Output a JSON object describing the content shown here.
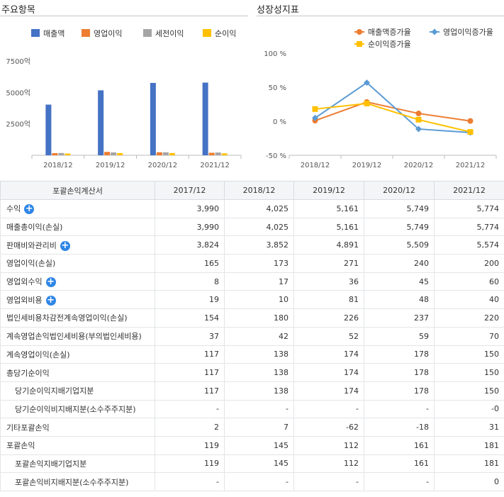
{
  "left_panel": {
    "title": "주요항목"
  },
  "right_panel": {
    "title": "성장성지표"
  },
  "chart_data": [
    {
      "type": "bar",
      "categories": [
        "2018/12",
        "2019/12",
        "2020/12",
        "2021/12"
      ],
      "series": [
        {
          "name": "매출액",
          "color": "#4472c4",
          "values": [
            4025,
            5161,
            5749,
            5774
          ]
        },
        {
          "name": "영업이익",
          "color": "#ed7d31",
          "values": [
            173,
            271,
            240,
            200
          ]
        },
        {
          "name": "세전이익",
          "color": "#a5a5a5",
          "values": [
            180,
            226,
            237,
            220
          ]
        },
        {
          "name": "순이익",
          "color": "#ffc000",
          "values": [
            138,
            174,
            178,
            150
          ]
        }
      ],
      "yticks": [
        {
          "value": 7500,
          "label": "7500억"
        },
        {
          "value": 5000,
          "label": "5000억"
        },
        {
          "value": 2500,
          "label": "2500억"
        }
      ],
      "ylim": [
        0,
        8000
      ],
      "legend": "top"
    },
    {
      "type": "line",
      "categories": [
        "2018/12",
        "2019/12",
        "2020/12",
        "2021/12"
      ],
      "series": [
        {
          "name": "매출액증가율",
          "color": "#ed7d31",
          "marker": "circle",
          "values": [
            0.9,
            28.2,
            11.4,
            0.4
          ]
        },
        {
          "name": "영업이익증가율",
          "color": "#5b9bd5",
          "marker": "diamond",
          "values": [
            4.8,
            56.6,
            -11.4,
            -16.7
          ]
        },
        {
          "name": "순이익증가율",
          "color": "#ffc000",
          "marker": "square",
          "values": [
            17.9,
            26.1,
            2.3,
            -15.7
          ]
        }
      ],
      "yticks": [
        {
          "value": 100,
          "label": "100 %"
        },
        {
          "value": 50,
          "label": "50 %"
        },
        {
          "value": 0,
          "label": "0 %"
        },
        {
          "value": -50,
          "label": "-50 %"
        }
      ],
      "ylim": [
        -50,
        100
      ],
      "legend": "top"
    }
  ],
  "table": {
    "header": [
      "포괄손익계산서",
      "2017/12",
      "2018/12",
      "2019/12",
      "2020/12",
      "2021/12"
    ],
    "rows": [
      {
        "label": "수익",
        "expand": true,
        "indent": false,
        "values": [
          "3,990",
          "4,025",
          "5,161",
          "5,749",
          "5,774"
        ]
      },
      {
        "label": "매출총이익(손실)",
        "expand": false,
        "indent": false,
        "values": [
          "3,990",
          "4,025",
          "5,161",
          "5,749",
          "5,774"
        ]
      },
      {
        "label": "판매비와관리비",
        "expand": true,
        "indent": false,
        "values": [
          "3,824",
          "3,852",
          "4,891",
          "5,509",
          "5,574"
        ]
      },
      {
        "label": "영업이익(손실)",
        "expand": false,
        "indent": false,
        "values": [
          "165",
          "173",
          "271",
          "240",
          "200"
        ]
      },
      {
        "label": "영업외수익",
        "expand": true,
        "indent": false,
        "values": [
          "8",
          "17",
          "36",
          "45",
          "60"
        ]
      },
      {
        "label": "영업외비용",
        "expand": true,
        "indent": false,
        "values": [
          "19",
          "10",
          "81",
          "48",
          "40"
        ]
      },
      {
        "label": "법인세비용차감전계속영업이익(손실)",
        "expand": false,
        "indent": false,
        "values": [
          "154",
          "180",
          "226",
          "237",
          "220"
        ]
      },
      {
        "label": "계속영업손익법인세비용(부의법인세비용)",
        "expand": false,
        "indent": false,
        "values": [
          "37",
          "42",
          "52",
          "59",
          "70"
        ]
      },
      {
        "label": "계속영업이익(손실)",
        "expand": false,
        "indent": false,
        "values": [
          "117",
          "138",
          "174",
          "178",
          "150"
        ]
      },
      {
        "label": "총당기순이익",
        "expand": false,
        "indent": false,
        "values": [
          "117",
          "138",
          "174",
          "178",
          "150"
        ]
      },
      {
        "label": "당기순이익지배기업지분",
        "expand": false,
        "indent": true,
        "values": [
          "117",
          "138",
          "174",
          "178",
          "150"
        ]
      },
      {
        "label": "당기순이익비지배지분(소수주주지분)",
        "expand": false,
        "indent": true,
        "values": [
          "-",
          "-",
          "-",
          "-",
          "-0"
        ]
      },
      {
        "label": "기타포괄손익",
        "expand": false,
        "indent": false,
        "values": [
          "2",
          "7",
          "-62",
          "-18",
          "31"
        ]
      },
      {
        "label": "포괄손익",
        "expand": false,
        "indent": false,
        "values": [
          "119",
          "145",
          "112",
          "161",
          "181"
        ]
      },
      {
        "label": "포괄손익지배기업지분",
        "expand": false,
        "indent": true,
        "values": [
          "119",
          "145",
          "112",
          "161",
          "181"
        ]
      },
      {
        "label": "포괄손익비지배지분(소수주주지분)",
        "expand": false,
        "indent": true,
        "values": [
          "-",
          "-",
          "-",
          "-",
          "0"
        ]
      }
    ]
  }
}
